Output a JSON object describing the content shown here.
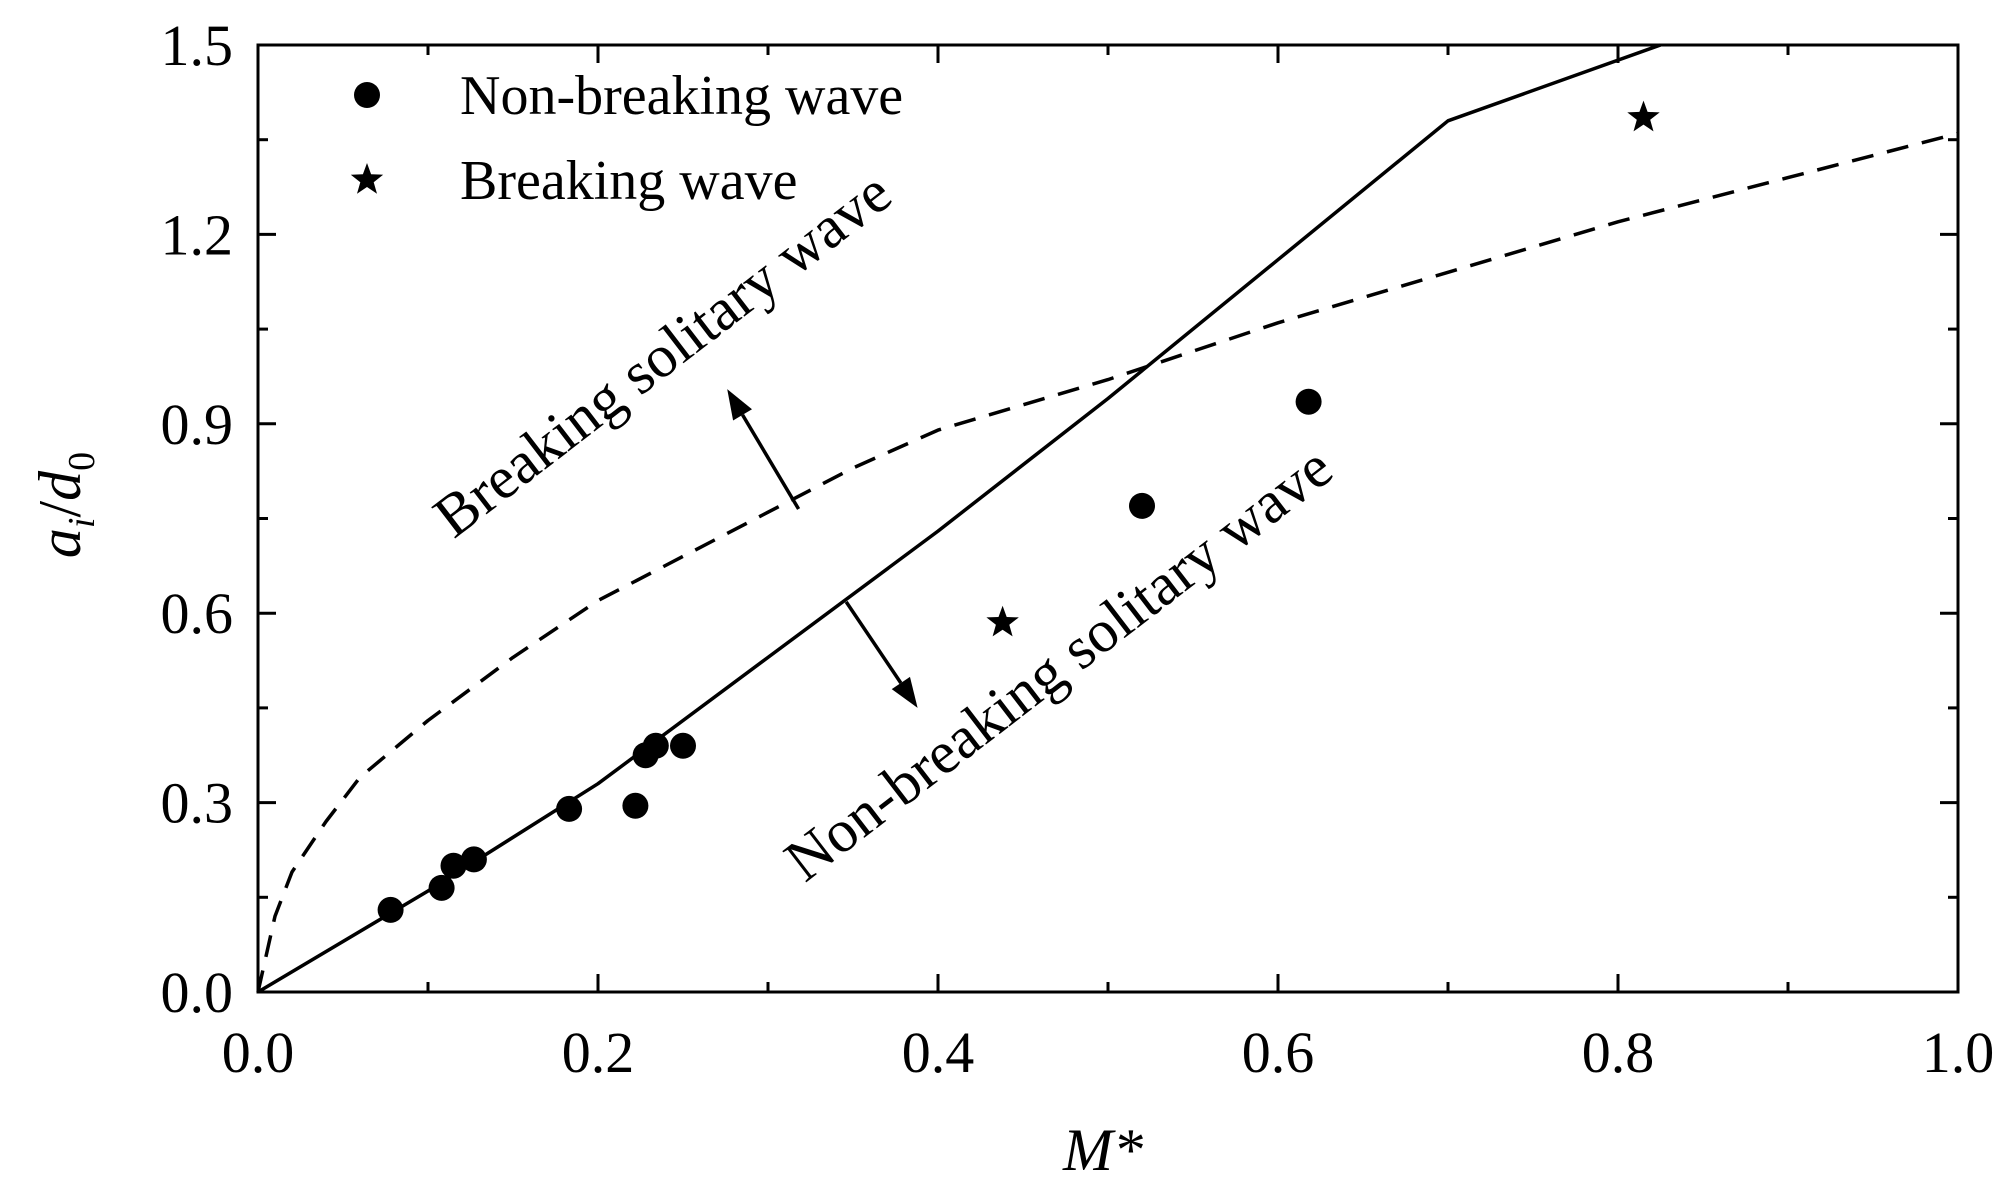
{
  "chart_data": {
    "type": "scatter",
    "xlabel": "M*",
    "ylabel_main": "a",
    "ylabel_sub_i": "i",
    "ylabel_slash": "/",
    "ylabel_d": "d",
    "ylabel_sub_0": "0",
    "xlim": [
      0.0,
      1.0
    ],
    "ylim": [
      0.0,
      1.5
    ],
    "x_ticks": [
      0.0,
      0.2,
      0.4,
      0.6,
      0.8,
      1.0
    ],
    "x_tick_labels": [
      "0.0",
      "0.2",
      "0.4",
      "0.6",
      "0.8",
      "1.0"
    ],
    "y_ticks": [
      0.0,
      0.3,
      0.6,
      0.9,
      1.2,
      1.5
    ],
    "y_tick_labels": [
      "0.0",
      "0.3",
      "0.6",
      "0.9",
      "1.2",
      "1.5"
    ],
    "x_minor_ticks": [
      0.1,
      0.3,
      0.5,
      0.7,
      0.9
    ],
    "y_minor_ticks": [
      0.15,
      0.45,
      0.75,
      1.05,
      1.35
    ],
    "grid": false,
    "legend_position": "top-left",
    "series": [
      {
        "name": "Non-breaking wave",
        "marker": "circle",
        "points": [
          {
            "x": 0.078,
            "y": 0.13
          },
          {
            "x": 0.108,
            "y": 0.165
          },
          {
            "x": 0.115,
            "y": 0.2
          },
          {
            "x": 0.127,
            "y": 0.21
          },
          {
            "x": 0.183,
            "y": 0.29
          },
          {
            "x": 0.222,
            "y": 0.295
          },
          {
            "x": 0.228,
            "y": 0.375
          },
          {
            "x": 0.234,
            "y": 0.39
          },
          {
            "x": 0.25,
            "y": 0.39
          },
          {
            "x": 0.52,
            "y": 0.77
          },
          {
            "x": 0.618,
            "y": 0.935
          }
        ]
      },
      {
        "name": "Breaking wave",
        "marker": "star",
        "points": [
          {
            "x": 0.438,
            "y": 0.585
          },
          {
            "x": 0.815,
            "y": 1.385
          }
        ]
      }
    ],
    "curves": [
      {
        "name": "Non-breaking solitary wave boundary (solid)",
        "style": "solid",
        "points": [
          {
            "x": 0.0,
            "y": 0.0
          },
          {
            "x": 0.1,
            "y": 0.16
          },
          {
            "x": 0.2,
            "y": 0.33
          },
          {
            "x": 0.3,
            "y": 0.53
          },
          {
            "x": 0.4,
            "y": 0.73
          },
          {
            "x": 0.5,
            "y": 0.94
          },
          {
            "x": 0.6,
            "y": 1.16
          },
          {
            "x": 0.7,
            "y": 1.38
          },
          {
            "x": 0.825,
            "y": 1.5
          }
        ]
      },
      {
        "name": "Breaking solitary wave boundary (dashed)",
        "style": "dashed",
        "points": [
          {
            "x": 0.0,
            "y": 0.0
          },
          {
            "x": 0.005,
            "y": 0.06
          },
          {
            "x": 0.01,
            "y": 0.12
          },
          {
            "x": 0.02,
            "y": 0.19
          },
          {
            "x": 0.04,
            "y": 0.27
          },
          {
            "x": 0.06,
            "y": 0.34
          },
          {
            "x": 0.1,
            "y": 0.43
          },
          {
            "x": 0.15,
            "y": 0.53
          },
          {
            "x": 0.2,
            "y": 0.62
          },
          {
            "x": 0.25,
            "y": 0.69
          },
          {
            "x": 0.3,
            "y": 0.76
          },
          {
            "x": 0.35,
            "y": 0.83
          },
          {
            "x": 0.4,
            "y": 0.89
          },
          {
            "x": 0.5,
            "y": 0.97
          },
          {
            "x": 0.6,
            "y": 1.06
          },
          {
            "x": 0.7,
            "y": 1.14
          },
          {
            "x": 0.8,
            "y": 1.22
          },
          {
            "x": 0.9,
            "y": 1.29
          },
          {
            "x": 1.0,
            "y": 1.36
          }
        ]
      }
    ],
    "annotations": [
      {
        "text": "Breaking solitary wave",
        "anchor": {
          "x": 0.245,
          "y": 0.985
        },
        "angle_deg": -37.5
      },
      {
        "text": "Non-breaking solitary wave",
        "anchor": {
          "x": 0.478,
          "y": 0.495
        },
        "angle_deg": -37.5
      }
    ],
    "arrows": [
      {
        "from": {
          "x": 0.318,
          "y": 0.765
        },
        "to": {
          "x": 0.276,
          "y": 0.955
        }
      },
      {
        "from": {
          "x": 0.346,
          "y": 0.618
        },
        "to": {
          "x": 0.388,
          "y": 0.45
        }
      }
    ]
  }
}
